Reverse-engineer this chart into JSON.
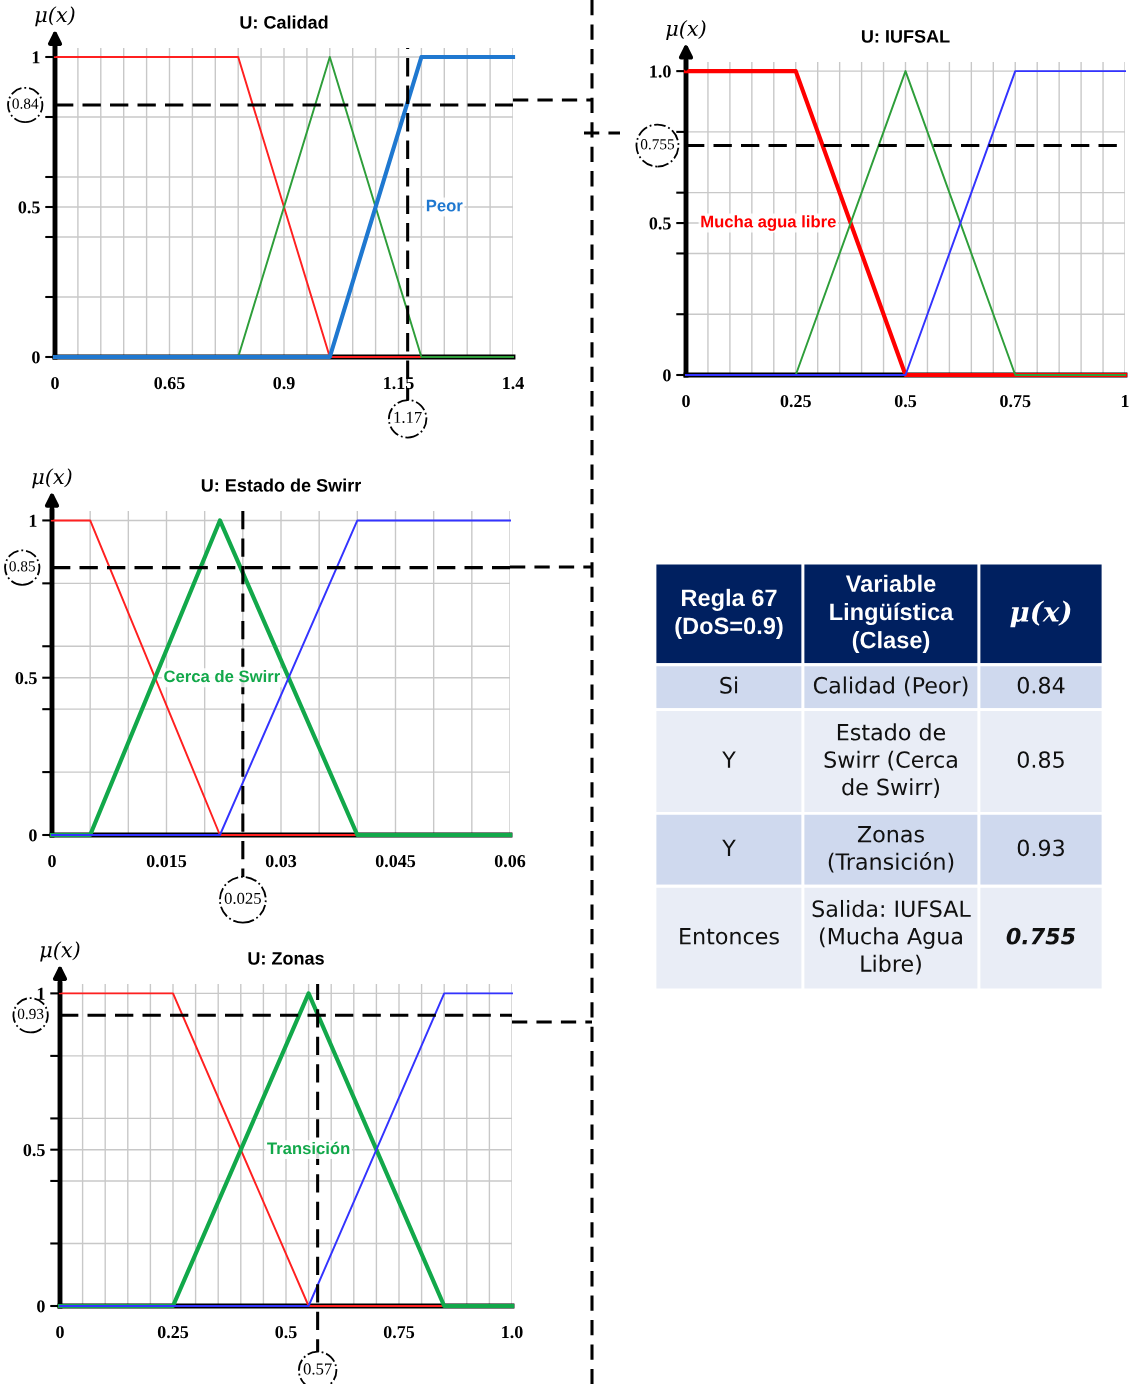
{
  "chart_data": [
    {
      "type": "line",
      "title": "U: Calidad",
      "ylabel": "μ(x)",
      "xlim": [
        0.4,
        1.4
      ],
      "ylim": [
        0,
        1.03
      ],
      "xticks": [
        {
          "value": 0.4,
          "label": "0"
        },
        {
          "value": 0.45,
          "label": null
        },
        {
          "value": 0.5,
          "label": null
        },
        {
          "value": 0.55,
          "label": null
        },
        {
          "value": 0.6,
          "label": null
        },
        0.65,
        {
          "value": 0.7,
          "label": null
        },
        {
          "value": 0.75,
          "label": null
        },
        {
          "value": 0.8,
          "label": null
        },
        {
          "value": 0.85,
          "label": null
        },
        0.9,
        {
          "value": 0.95,
          "label": null
        },
        {
          "value": 1.0,
          "label": null
        },
        {
          "value": 1.05,
          "label": null
        },
        {
          "value": 1.1,
          "label": null
        },
        1.15,
        {
          "value": 1.2,
          "label": null
        },
        {
          "value": 1.25,
          "label": null
        },
        {
          "value": 1.3,
          "label": null
        },
        {
          "value": 1.35,
          "label": null
        },
        1.4
      ],
      "yticks": [
        0,
        {
          "value": 0.2,
          "label": null
        },
        {
          "value": 0.4,
          "label": null
        },
        0.5,
        {
          "value": 0.6,
          "label": null
        },
        {
          "value": 0.8,
          "label": null
        },
        1
      ],
      "grid": true,
      "line_style": "solid",
      "marker": "none",
      "series": [
        {
          "color": "#ff2020",
          "x": [
            0.4,
            0.8,
            1.0,
            1.4
          ],
          "values": [
            1,
            1,
            0,
            0
          ]
        },
        {
          "color": "#2e9e3a",
          "x": [
            0.4,
            0.8,
            1.0,
            1.2,
            1.4
          ],
          "values": [
            0,
            0,
            1,
            0,
            0
          ]
        },
        {
          "name": "Peor",
          "color": "#1f78d0",
          "x": [
            0.4,
            1.0,
            1.2,
            1.4
          ],
          "values": [
            0,
            0,
            1,
            1
          ]
        }
      ],
      "ref_lines": [
        {
          "axis": "y",
          "value": 0.84,
          "label": "0.84",
          "line_style": "dashed",
          "color": "#000000"
        },
        {
          "axis": "x",
          "value": 1.17,
          "label": "1.17",
          "line_style": "dashed",
          "color": "#000000"
        }
      ]
    },
    {
      "type": "line",
      "title": "U: IUFSAL",
      "ylabel": "μ(x)",
      "xlim": [
        0,
        1
      ],
      "ylim": [
        0,
        1.03
      ],
      "xticks": [
        0,
        {
          "value": 0.05,
          "label": null
        },
        {
          "value": 0.1,
          "label": null
        },
        {
          "value": 0.15,
          "label": null
        },
        {
          "value": 0.2,
          "label": null
        },
        0.25,
        {
          "value": 0.3,
          "label": null
        },
        {
          "value": 0.35,
          "label": null
        },
        {
          "value": 0.4,
          "label": null
        },
        {
          "value": 0.45,
          "label": null
        },
        0.5,
        {
          "value": 0.55,
          "label": null
        },
        {
          "value": 0.6,
          "label": null
        },
        {
          "value": 0.65,
          "label": null
        },
        {
          "value": 0.7,
          "label": null
        },
        0.75,
        {
          "value": 0.8,
          "label": null
        },
        {
          "value": 0.85,
          "label": null
        },
        {
          "value": 0.9,
          "label": null
        },
        {
          "value": 0.95,
          "label": null
        },
        1
      ],
      "yticks": [
        0,
        {
          "value": 0.2,
          "label": null
        },
        {
          "value": 0.4,
          "label": null
        },
        0.5,
        {
          "value": 0.6,
          "label": null
        },
        {
          "value": 0.8,
          "label": null
        },
        {
          "value": 1,
          "label": "1.0"
        }
      ],
      "grid": true,
      "line_style": "solid",
      "marker": "none",
      "series": [
        {
          "name": "Mucha agua libre",
          "color": "#ff0000",
          "x": [
            0,
            0.25,
            0.5,
            1
          ],
          "values": [
            1,
            1,
            0,
            0
          ]
        },
        {
          "color": "#2e9e3a",
          "x": [
            0,
            0.25,
            0.5,
            0.75,
            1
          ],
          "values": [
            0,
            0,
            1,
            0,
            0
          ]
        },
        {
          "color": "#3333ff",
          "x": [
            0,
            0.5,
            0.75,
            1
          ],
          "values": [
            0,
            0,
            1,
            1
          ]
        }
      ],
      "ref_lines": [
        {
          "axis": "y",
          "value": 0.755,
          "label": "0.755",
          "line_style": "dashed",
          "color": "#000000"
        }
      ]
    },
    {
      "type": "line",
      "title": "U: Estado de Swirr",
      "ylabel": "μ(x)",
      "xlim": [
        0,
        0.06
      ],
      "ylim": [
        0,
        1.03
      ],
      "xticks": [
        0,
        {
          "value": 0.005,
          "label": null
        },
        {
          "value": 0.01,
          "label": null
        },
        0.015,
        {
          "value": 0.02,
          "label": null
        },
        {
          "value": 0.025,
          "label": null
        },
        0.03,
        {
          "value": 0.035,
          "label": null
        },
        {
          "value": 0.04,
          "label": null
        },
        0.045,
        {
          "value": 0.05,
          "label": null
        },
        {
          "value": 0.055,
          "label": null
        },
        0.06
      ],
      "yticks": [
        0,
        {
          "value": 0.2,
          "label": null
        },
        {
          "value": 0.4,
          "label": null
        },
        0.5,
        {
          "value": 0.6,
          "label": null
        },
        {
          "value": 0.8,
          "label": null
        },
        1
      ],
      "grid": true,
      "line_style": "solid",
      "marker": "none",
      "series": [
        {
          "color": "#ff2020",
          "x": [
            0,
            0.005,
            0.022,
            0.06
          ],
          "values": [
            1,
            1,
            0,
            0
          ]
        },
        {
          "name": "Cerca de Swirr",
          "color": "#12a84a",
          "x": [
            0,
            0.005,
            0.022,
            0.04,
            0.06
          ],
          "values": [
            0,
            0,
            1,
            0,
            0
          ]
        },
        {
          "color": "#3333ff",
          "x": [
            0,
            0.022,
            0.04,
            0.06
          ],
          "values": [
            0,
            0,
            1,
            1
          ]
        }
      ],
      "ref_lines": [
        {
          "axis": "y",
          "value": 0.85,
          "label": "0.85",
          "line_style": "dashed",
          "color": "#000000"
        },
        {
          "axis": "x",
          "value": 0.025,
          "label": "0.025",
          "line_style": "dashed",
          "color": "#000000"
        }
      ]
    },
    {
      "type": "other",
      "categories": [
        "Regla 67\n(DoS=0.9)",
        "Variable\nLingüística\n(Clase)",
        "μ(x)"
      ],
      "cell_labels": [
        [
          "Si",
          "Calidad (Peor)",
          "0.84"
        ],
        [
          "Y",
          "Estado de\nSwirr (Cerca\nde Swirr)",
          "0.85"
        ],
        [
          "Y",
          "Zonas\n(Transición)",
          "0.93"
        ],
        [
          "Entonces",
          "Salida: IUFSAL\n(Mucha Agua\nLibre)",
          "0.755"
        ]
      ]
    },
    {
      "type": "line",
      "title": "U: Zonas",
      "ylabel": "μ(x)",
      "xlim": [
        0,
        1
      ],
      "ylim": [
        0,
        1.03
      ],
      "xticks": [
        0,
        {
          "value": 0.05,
          "label": null
        },
        {
          "value": 0.1,
          "label": null
        },
        {
          "value": 0.15,
          "label": null
        },
        {
          "value": 0.2,
          "label": null
        },
        0.25,
        {
          "value": 0.3,
          "label": null
        },
        {
          "value": 0.35,
          "label": null
        },
        {
          "value": 0.4,
          "label": null
        },
        {
          "value": 0.45,
          "label": null
        },
        0.5,
        {
          "value": 0.55,
          "label": null
        },
        {
          "value": 0.6,
          "label": null
        },
        {
          "value": 0.65,
          "label": null
        },
        {
          "value": 0.7,
          "label": null
        },
        0.75,
        {
          "value": 0.8,
          "label": null
        },
        {
          "value": 0.85,
          "label": null
        },
        {
          "value": 0.9,
          "label": null
        },
        {
          "value": 0.95,
          "label": null
        },
        {
          "value": 1,
          "label": "1.0"
        }
      ],
      "yticks": [
        0,
        {
          "value": 0.2,
          "label": null
        },
        {
          "value": 0.4,
          "label": null
        },
        0.5,
        {
          "value": 0.6,
          "label": null
        },
        {
          "value": 0.8,
          "label": null
        },
        1
      ],
      "grid": true,
      "line_style": "solid",
      "marker": "none",
      "series": [
        {
          "color": "#ff2020",
          "x": [
            0,
            0.25,
            0.55,
            1
          ],
          "values": [
            1,
            1,
            0,
            0
          ]
        },
        {
          "name": "Transición",
          "color": "#12a84a",
          "x": [
            0,
            0.25,
            0.55,
            0.85,
            1
          ],
          "values": [
            0,
            0,
            1,
            0,
            0
          ]
        },
        {
          "color": "#3333ff",
          "x": [
            0,
            0.55,
            0.85,
            1
          ],
          "values": [
            0,
            0,
            1,
            1
          ]
        }
      ],
      "ref_lines": [
        {
          "axis": "y",
          "value": 0.93,
          "label": "0.93",
          "line_style": "dashed",
          "color": "#000000"
        },
        {
          "axis": "x",
          "value": 0.57,
          "label": "0.57",
          "line_style": "dashed",
          "color": "#000000"
        }
      ]
    }
  ]
}
